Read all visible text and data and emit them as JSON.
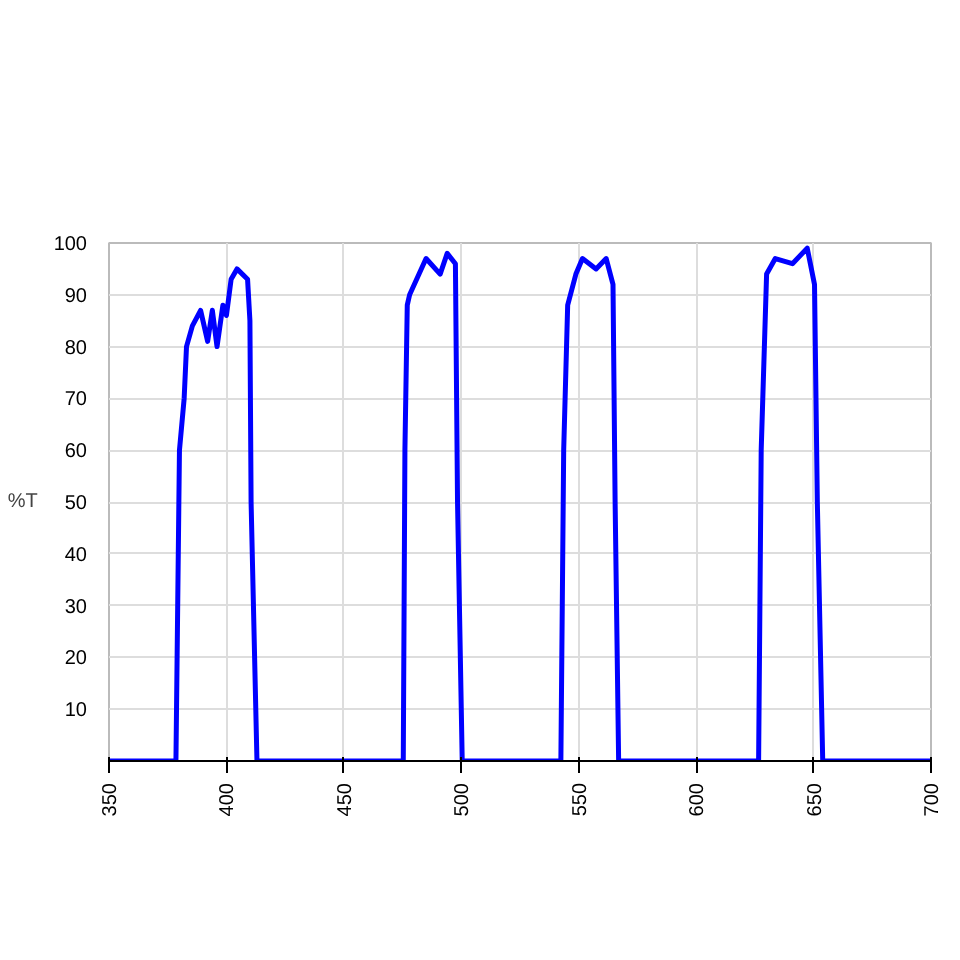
{
  "chart_data": {
    "type": "line",
    "ylabel": "%T",
    "x": [
      350,
      378.5,
      380,
      382,
      383,
      385.5,
      389,
      392,
      394,
      396,
      398.5,
      400,
      402,
      404.5,
      409,
      410,
      410.5,
      413,
      475.3,
      476,
      477,
      478,
      485,
      491,
      494,
      497.5,
      498.4,
      500.4,
      542.4,
      543.6,
      545.3,
      548.8,
      551.6,
      557.4,
      561.7,
      564.6,
      565.5,
      567,
      626.6,
      627.7,
      630,
      633.7,
      641,
      647.3,
      650.4,
      651.6,
      653.9,
      700
    ],
    "series": [
      {
        "color": "#0000ff",
        "values": [
          0,
          0,
          60,
          70,
          80,
          84,
          87,
          81,
          87,
          80,
          88,
          86,
          93,
          95,
          93,
          85,
          50,
          0,
          0,
          60,
          88,
          90,
          97,
          94,
          98,
          96,
          50,
          0,
          0,
          60,
          88,
          94,
          97,
          95,
          97,
          92,
          50,
          0,
          0,
          60,
          94,
          97,
          96,
          99,
          92,
          50,
          0,
          0
        ]
      }
    ],
    "xlim": [
      350,
      700
    ],
    "ylim": [
      0,
      100
    ],
    "xticks": [
      350,
      400,
      450,
      500,
      550,
      600,
      650,
      700
    ],
    "yticks": [
      10,
      20,
      30,
      40,
      50,
      60,
      70,
      80,
      90,
      100
    ],
    "grid": true,
    "marker": "none",
    "line_style": "solid"
  }
}
